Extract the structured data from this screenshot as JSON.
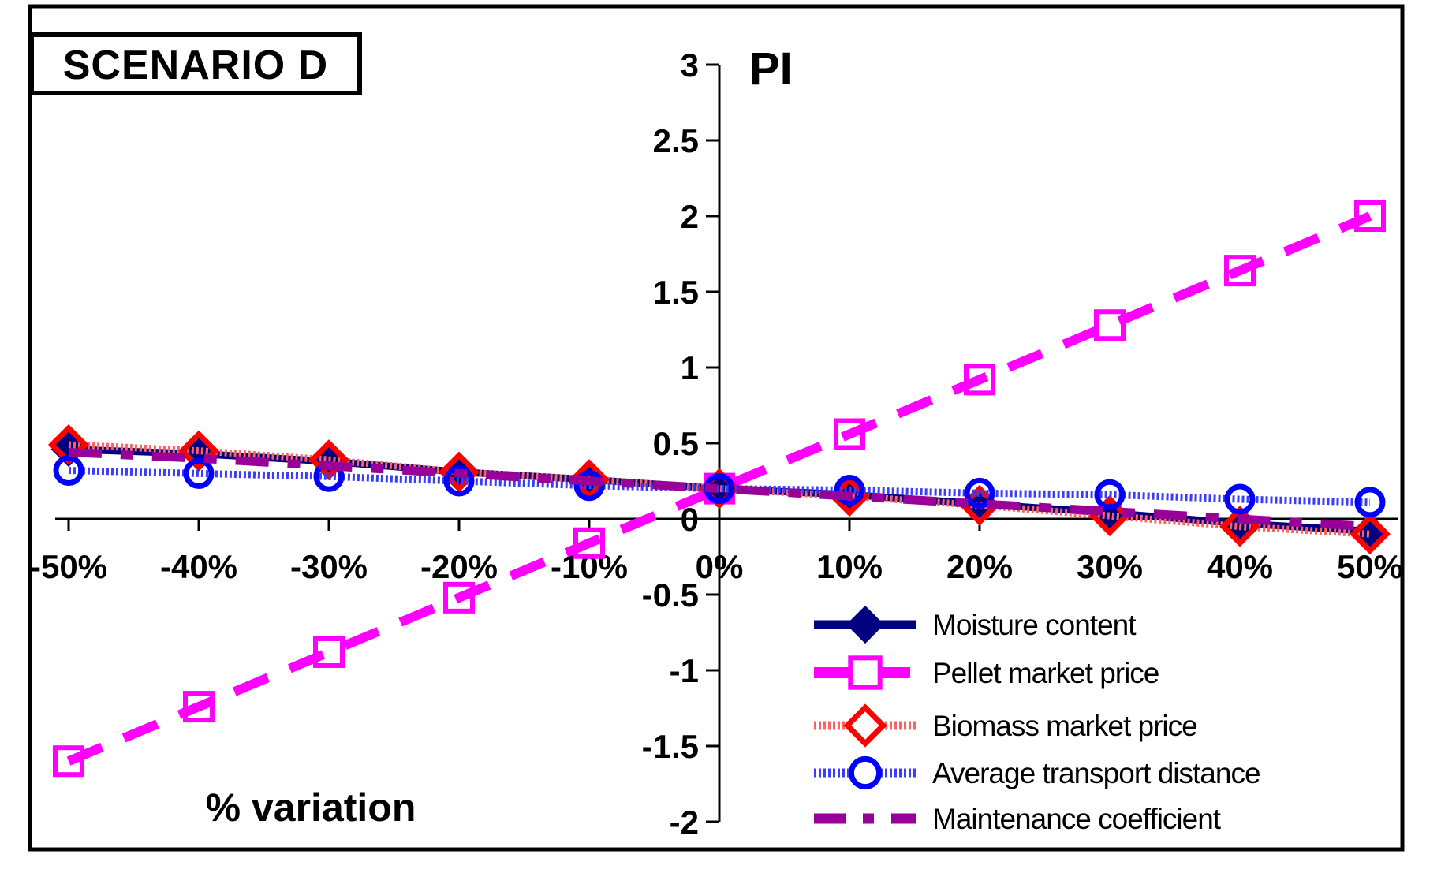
{
  "title": "SCENARIO D",
  "axes": {
    "y_title": "PI",
    "x_title": "% variation"
  },
  "chart_data": {
    "type": "line",
    "title": "SCENARIO D",
    "xlabel": "% variation",
    "ylabel": "PI",
    "grid": false,
    "legend_position": "inside-bottom-right",
    "ylim": [
      -2,
      3
    ],
    "y_tick_step": 0.5,
    "y_tick_labels": [
      "3",
      "2.5",
      "2",
      "1.5",
      "1",
      "0.5",
      "0",
      "-0.5",
      "-1",
      "-1.5",
      "-2"
    ],
    "y_ticks": [
      3,
      2.5,
      2,
      1.5,
      1,
      0.5,
      0,
      -0.5,
      -1,
      -1.5,
      -2
    ],
    "x_tick_labels": [
      "-50%",
      "-40%",
      "-30%",
      "-20%",
      "-10%",
      "0%",
      "10%",
      "20%",
      "30%",
      "40%",
      "50%"
    ],
    "x_values_percent": [
      -50,
      -40,
      -30,
      -20,
      -10,
      0,
      10,
      20,
      30,
      40,
      50
    ],
    "series": [
      {
        "name": "Moisture content",
        "color": "#000080",
        "line_color": "#000080",
        "line_style": "solid",
        "marker": "filled-diamond",
        "values": [
          0.46,
          0.43,
          0.38,
          0.31,
          0.26,
          0.2,
          0.16,
          0.1,
          0.04,
          -0.03,
          -0.08
        ]
      },
      {
        "name": "Pellet market price",
        "color": "#ff00ff",
        "line_color": "#ff00ff",
        "line_style": "dashed",
        "marker": "open-square",
        "values": [
          -1.6,
          -1.24,
          -0.88,
          -0.52,
          -0.16,
          0.2,
          0.56,
          0.92,
          1.28,
          1.64,
          2.0
        ]
      },
      {
        "name": "Biomass market price",
        "color": "#ff0000",
        "line_color": "#ff6060",
        "line_style": "dotted",
        "marker": "open-diamond",
        "values": [
          0.49,
          0.45,
          0.39,
          0.31,
          0.26,
          0.2,
          0.15,
          0.09,
          0.02,
          -0.05,
          -0.1
        ]
      },
      {
        "name": "Average transport distance",
        "color": "#0000ff",
        "line_color": "#3c3cff",
        "line_style": "dotted",
        "marker": "open-circle",
        "values": [
          0.32,
          0.3,
          0.28,
          0.25,
          0.22,
          0.2,
          0.19,
          0.17,
          0.16,
          0.13,
          0.11
        ]
      },
      {
        "name": "Maintenance coefficient",
        "color": "#990099",
        "line_color": "#990099",
        "line_style": "long-short-dash",
        "marker": "none",
        "values": [
          0.44,
          0.4,
          0.35,
          0.3,
          0.25,
          0.2,
          0.15,
          0.1,
          0.05,
          0.0,
          -0.05
        ]
      }
    ]
  }
}
